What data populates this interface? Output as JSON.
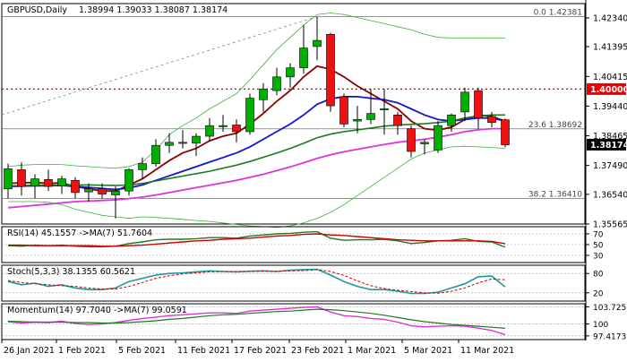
{
  "header": {
    "symbol": "GBPUSD,Daily",
    "ohlc": "1.38994 1.39033 1.38087 1.38174"
  },
  "price_axis": {
    "ticks": [
      "1.42340",
      "1.41395",
      "1.40415",
      "1.39440",
      "1.38465",
      "1.37490",
      "1.36540",
      "1.35565"
    ],
    "highlight_resistance": "1.40000",
    "highlight_current": "1.38174"
  },
  "fib_labels": [
    {
      "label": "0.0 1.42381",
      "price": 1.42381
    },
    {
      "label": "23.6 1.38692",
      "price": 1.38692
    },
    {
      "label": "38.2 1.36410",
      "price": 1.3641
    }
  ],
  "x_axis_labels": [
    "26 Jan 2021",
    "1 Feb 2021",
    "5 Feb 2021",
    "11 Feb 2021",
    "17 Feb 2021",
    "23 Feb 2021",
    "1 Mar 2021",
    "5 Mar 2021",
    "11 Mar 2021"
  ],
  "indicators": {
    "rsi": {
      "title": "RSI(14) 45.1557 ->MA(7) 51.7604",
      "ticks": [
        "70",
        "50",
        "30"
      ]
    },
    "stoch": {
      "title": "Stoch(5,3,3) 38.1355 60.5621",
      "ticks": [
        "80",
        "20"
      ]
    },
    "momentum": {
      "title": "Momentum(14) 97.7040 ->MA(7) 99.0591",
      "ticks": [
        "103.7259",
        "100",
        "97.4173"
      ]
    }
  },
  "colors": {
    "bull": "#00b000",
    "bear": "#ee1111",
    "ma_fast": "#8b0000",
    "ma_blue": "#1515cc",
    "ma_green": "#1e7a1e",
    "ma_magenta": "#dd33dd",
    "bollinger": "#3cb33c",
    "resistance": "#cc0000"
  },
  "chart_data": {
    "type": "candlestick",
    "ylim": [
      1.35565,
      1.4281
    ],
    "candles": [
      {
        "date": "2021-01-25",
        "o": 1.3672,
        "h": 1.3755,
        "l": 1.364,
        "c": 1.3738
      },
      {
        "date": "2021-01-26",
        "o": 1.3735,
        "h": 1.3759,
        "l": 1.365,
        "c": 1.368
      },
      {
        "date": "2021-01-27",
        "o": 1.3682,
        "h": 1.372,
        "l": 1.364,
        "c": 1.3705
      },
      {
        "date": "2021-01-28",
        "o": 1.3703,
        "h": 1.3735,
        "l": 1.3665,
        "c": 1.368
      },
      {
        "date": "2021-01-29",
        "o": 1.3682,
        "h": 1.3715,
        "l": 1.3655,
        "c": 1.3705
      },
      {
        "date": "2021-02-01",
        "o": 1.37,
        "h": 1.371,
        "l": 1.364,
        "c": 1.366
      },
      {
        "date": "2021-02-02",
        "o": 1.3662,
        "h": 1.369,
        "l": 1.363,
        "c": 1.3672
      },
      {
        "date": "2021-02-03",
        "o": 1.3672,
        "h": 1.369,
        "l": 1.364,
        "c": 1.3655
      },
      {
        "date": "2021-02-04",
        "o": 1.3652,
        "h": 1.368,
        "l": 1.3575,
        "c": 1.3665
      },
      {
        "date": "2021-02-05",
        "o": 1.3665,
        "h": 1.374,
        "l": 1.365,
        "c": 1.3735
      },
      {
        "date": "2021-02-08",
        "o": 1.3735,
        "h": 1.3775,
        "l": 1.3705,
        "c": 1.3755
      },
      {
        "date": "2021-02-09",
        "o": 1.3755,
        "h": 1.3835,
        "l": 1.3745,
        "c": 1.3815
      },
      {
        "date": "2021-02-10",
        "o": 1.3815,
        "h": 1.3855,
        "l": 1.379,
        "c": 1.3825
      },
      {
        "date": "2021-02-11",
        "o": 1.3825,
        "h": 1.3865,
        "l": 1.3805,
        "c": 1.3825
      },
      {
        "date": "2021-02-12",
        "o": 1.3822,
        "h": 1.3855,
        "l": 1.378,
        "c": 1.3845
      },
      {
        "date": "2021-02-15",
        "o": 1.3845,
        "h": 1.3905,
        "l": 1.383,
        "c": 1.388
      },
      {
        "date": "2021-02-16",
        "o": 1.388,
        "h": 1.3915,
        "l": 1.386,
        "c": 1.388
      },
      {
        "date": "2021-02-17",
        "o": 1.3882,
        "h": 1.39,
        "l": 1.3825,
        "c": 1.386
      },
      {
        "date": "2021-02-18",
        "o": 1.386,
        "h": 1.3985,
        "l": 1.385,
        "c": 1.397
      },
      {
        "date": "2021-02-19",
        "o": 1.3965,
        "h": 1.402,
        "l": 1.3925,
        "c": 1.4
      },
      {
        "date": "2021-02-22",
        "o": 1.3995,
        "h": 1.407,
        "l": 1.398,
        "c": 1.404
      },
      {
        "date": "2021-02-23",
        "o": 1.404,
        "h": 1.4085,
        "l": 1.4005,
        "c": 1.407
      },
      {
        "date": "2021-02-24",
        "o": 1.407,
        "h": 1.421,
        "l": 1.405,
        "c": 1.4135
      },
      {
        "date": "2021-02-25",
        "o": 1.414,
        "h": 1.4238,
        "l": 1.4095,
        "c": 1.416
      },
      {
        "date": "2021-02-26",
        "o": 1.418,
        "h": 1.4185,
        "l": 1.3925,
        "c": 1.3945
      },
      {
        "date": "2021-03-01",
        "o": 1.3975,
        "h": 1.3985,
        "l": 1.3875,
        "c": 1.3885
      },
      {
        "date": "2021-03-02",
        "o": 1.3895,
        "h": 1.3945,
        "l": 1.3855,
        "c": 1.39
      },
      {
        "date": "2021-03-03",
        "o": 1.39,
        "h": 1.4,
        "l": 1.3885,
        "c": 1.392
      },
      {
        "date": "2021-03-04",
        "o": 1.3935,
        "h": 1.4,
        "l": 1.385,
        "c": 1.3935
      },
      {
        "date": "2021-03-05",
        "o": 1.3915,
        "h": 1.3925,
        "l": 1.385,
        "c": 1.388
      },
      {
        "date": "2021-03-08",
        "o": 1.387,
        "h": 1.388,
        "l": 1.3775,
        "c": 1.3795
      },
      {
        "date": "2021-03-09",
        "o": 1.382,
        "h": 1.3835,
        "l": 1.3785,
        "c": 1.3825
      },
      {
        "date": "2021-03-10",
        "o": 1.38,
        "h": 1.3895,
        "l": 1.379,
        "c": 1.388
      },
      {
        "date": "2021-03-11",
        "o": 1.388,
        "h": 1.392,
        "l": 1.386,
        "c": 1.3915
      },
      {
        "date": "2021-03-12",
        "o": 1.3925,
        "h": 1.4005,
        "l": 1.3895,
        "c": 1.399
      },
      {
        "date": "2021-03-15",
        "o": 1.3995,
        "h": 1.4005,
        "l": 1.387,
        "c": 1.3905
      },
      {
        "date": "2021-03-16",
        "o": 1.391,
        "h": 1.3925,
        "l": 1.3875,
        "c": 1.389
      },
      {
        "date": "2021-03-17",
        "o": 1.3899,
        "h": 1.3903,
        "l": 1.3809,
        "c": 1.3817
      }
    ],
    "overlays": [
      {
        "key": "ma_fast",
        "values": [
          1.369,
          1.3692,
          1.3693,
          1.369,
          1.3692,
          1.368,
          1.3672,
          1.3665,
          1.3665,
          1.3685,
          1.3705,
          1.3735,
          1.3765,
          1.379,
          1.3805,
          1.383,
          1.3845,
          1.3855,
          1.3885,
          1.392,
          1.396,
          1.3995,
          1.404,
          1.4075,
          1.4065,
          1.404,
          1.401,
          1.3985,
          1.396,
          1.3935,
          1.3895,
          1.387,
          1.3865,
          1.3875,
          1.39,
          1.3915,
          1.391,
          1.3895
        ]
      },
      {
        "key": "ma_blue",
        "values": [
          1.368,
          1.3681,
          1.3682,
          1.3682,
          1.3683,
          1.368,
          1.3677,
          1.3673,
          1.367,
          1.3675,
          1.3685,
          1.37,
          1.3715,
          1.373,
          1.3745,
          1.376,
          1.3775,
          1.379,
          1.381,
          1.3835,
          1.386,
          1.3885,
          1.3915,
          1.395,
          1.3968,
          1.3975,
          1.3975,
          1.397,
          1.3965,
          1.3955,
          1.3935,
          1.3915,
          1.39,
          1.3895,
          1.39,
          1.3905,
          1.3905,
          1.3895
        ]
      },
      {
        "key": "ma_green",
        "values": [
          1.3682,
          1.3683,
          1.3684,
          1.3684,
          1.3685,
          1.3685,
          1.3685,
          1.3684,
          1.3683,
          1.3685,
          1.369,
          1.3698,
          1.3706,
          1.3714,
          1.3722,
          1.373,
          1.374,
          1.375,
          1.3762,
          1.3776,
          1.379,
          1.3805,
          1.3822,
          1.384,
          1.3852,
          1.386,
          1.3866,
          1.3872,
          1.3878,
          1.3882,
          1.3884,
          1.3886,
          1.389,
          1.3895,
          1.3905,
          1.3912,
          1.3915,
          1.3915
        ]
      },
      {
        "key": "ma_magenta",
        "values": [
          1.361,
          1.3614,
          1.3618,
          1.3622,
          1.3626,
          1.363,
          1.3632,
          1.3634,
          1.3636,
          1.364,
          1.3645,
          1.3652,
          1.366,
          1.3668,
          1.3676,
          1.3684,
          1.3692,
          1.37,
          1.371,
          1.372,
          1.3732,
          1.3744,
          1.3758,
          1.3772,
          1.3784,
          1.3794,
          1.3802,
          1.381,
          1.3818,
          1.3825,
          1.383,
          1.3835,
          1.3842,
          1.385,
          1.386,
          1.3866,
          1.387,
          1.387
        ]
      },
      {
        "key": "bollinger",
        "values": [
          1.3745,
          1.375,
          1.3752,
          1.3752,
          1.3752,
          1.3748,
          1.3745,
          1.3742,
          1.374,
          1.3745,
          1.376,
          1.38,
          1.385,
          1.388,
          1.3905,
          1.3935,
          1.396,
          1.3985,
          1.403,
          1.408,
          1.413,
          1.417,
          1.421,
          1.4245,
          1.425,
          1.4245,
          1.4235,
          1.4225,
          1.4215,
          1.4205,
          1.4195,
          1.418,
          1.417,
          1.4168,
          1.4168,
          1.4168,
          1.4168,
          1.4168
        ]
      },
      {
        "key": "bollinger",
        "values": [
          1.363,
          1.363,
          1.363,
          1.3628,
          1.362,
          1.3605,
          1.3595,
          1.3585,
          1.358,
          1.3575,
          1.358,
          1.3578,
          1.3575,
          1.3572,
          1.3568,
          1.3565,
          1.356,
          1.3555,
          1.355,
          1.3548,
          1.3545,
          1.355,
          1.356,
          1.3575,
          1.3595,
          1.362,
          1.365,
          1.368,
          1.371,
          1.374,
          1.377,
          1.379,
          1.38,
          1.381,
          1.3812,
          1.381,
          1.3808,
          1.3805
        ]
      }
    ],
    "levels": [
      {
        "name": "resistance",
        "price": 1.4
      },
      {
        "name": "fib-23.6",
        "price": 1.38692
      },
      {
        "name": "fib-38.2",
        "price": 1.3641
      },
      {
        "name": "fib-0.0",
        "price": 1.42381
      }
    ],
    "rsi": {
      "ylim": [
        20,
        80
      ],
      "values": [
        48,
        47,
        49,
        48,
        49,
        47,
        46,
        46,
        47,
        52,
        55,
        59,
        60,
        60,
        61,
        63,
        63,
        62,
        66,
        68,
        70,
        71,
        73,
        74,
        62,
        58,
        59,
        59,
        60,
        57,
        52,
        54,
        57,
        58,
        61,
        56,
        55,
        45.16
      ],
      "ma": [
        49,
        49,
        48,
        48,
        48,
        48,
        48,
        47,
        47,
        48,
        49,
        51,
        53,
        55,
        57,
        58,
        60,
        61,
        62,
        64,
        66,
        67,
        69,
        70,
        68,
        67,
        65,
        63,
        61,
        59,
        58,
        57,
        57,
        57,
        57,
        57,
        56,
        51.76
      ]
    },
    "stoch": {
      "ylim": [
        0,
        100
      ],
      "k": [
        55,
        45,
        50,
        40,
        45,
        35,
        30,
        30,
        35,
        55,
        65,
        75,
        80,
        82,
        85,
        88,
        86,
        85,
        87,
        88,
        86,
        90,
        92,
        93,
        75,
        55,
        40,
        30,
        30,
        25,
        18,
        18,
        22,
        35,
        48,
        70,
        72,
        38.14
      ],
      "d": [
        58,
        52,
        48,
        45,
        42,
        40,
        35,
        32,
        32,
        40,
        52,
        65,
        73,
        79,
        82,
        85,
        86,
        86,
        86,
        87,
        87,
        88,
        89,
        92,
        86,
        74,
        57,
        42,
        33,
        28,
        24,
        20,
        19,
        25,
        35,
        51,
        63,
        60.56
      ]
    },
    "momentum": {
      "ylim": [
        97.0,
        104.0
      ],
      "values": [
        100.5,
        100.2,
        100.4,
        100.3,
        100.6,
        100.1,
        99.9,
        100.0,
        100.3,
        100.8,
        101.2,
        101.5,
        101.8,
        102.0,
        102.2,
        102.4,
        102.4,
        102.3,
        102.8,
        103.0,
        103.2,
        103.4,
        103.6,
        103.7,
        102.6,
        101.8,
        101.6,
        101.2,
        101.0,
        100.4,
        99.6,
        99.4,
        99.5,
        99.6,
        99.5,
        99.1,
        98.6,
        97.7
      ],
      "ma": [
        100.6,
        100.5,
        100.4,
        100.4,
        100.4,
        100.3,
        100.3,
        100.2,
        100.2,
        100.3,
        100.5,
        100.7,
        101.0,
        101.2,
        101.5,
        101.8,
        102.0,
        102.1,
        102.3,
        102.5,
        102.7,
        102.8,
        103.0,
        103.2,
        103.1,
        102.9,
        102.6,
        102.3,
        101.9,
        101.4,
        100.9,
        100.5,
        100.2,
        99.9,
        99.7,
        99.5,
        99.3,
        99.06
      ]
    }
  }
}
